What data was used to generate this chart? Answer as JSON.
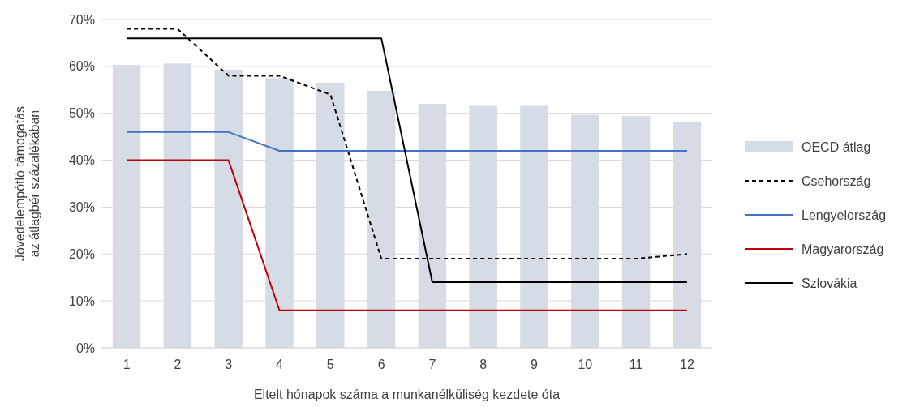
{
  "chart_data": {
    "type": "bar",
    "xlabel": "Eltelt hónapok száma a munkanélküliség kezdete óta",
    "ylabel": "Jövedelempótló támogatás\naz átlagbér százalékában",
    "categories": [
      "1",
      "2",
      "3",
      "4",
      "5",
      "6",
      "7",
      "8",
      "9",
      "10",
      "11",
      "12"
    ],
    "series": [
      {
        "name": "OECD átlag",
        "color": "#d6dce5",
        "values": [
          60.3,
          60.6,
          59.3,
          57.5,
          56.5,
          54.8,
          52,
          51.6,
          51.6,
          49.7,
          49.4,
          48.1
        ]
      },
      {
        "name": "Csehország",
        "type": "line",
        "line_style": "dashed",
        "color": "#000000",
        "values": [
          68,
          68,
          58,
          58,
          54,
          19,
          19,
          19,
          19,
          19,
          19,
          20
        ]
      },
      {
        "name": "Lengyelország",
        "type": "line",
        "line_style": "solid",
        "color": "#4472c4",
        "values": [
          46,
          46,
          46,
          42,
          42,
          42,
          42,
          42,
          42,
          42,
          42,
          42
        ]
      },
      {
        "name": "Magyarország",
        "type": "line",
        "line_style": "solid",
        "color": "#c00000",
        "values": [
          40,
          40,
          40,
          8,
          8,
          8,
          8,
          8,
          8,
          8,
          8,
          8
        ]
      },
      {
        "name": "Szlovákia",
        "type": "line",
        "line_style": "solid",
        "color": "#000000",
        "values": [
          66,
          66,
          66,
          66,
          66,
          66,
          14,
          14,
          14,
          14,
          14,
          14
        ]
      }
    ],
    "ylim": [
      0,
      70
    ],
    "yticks": [
      {
        "value": 0,
        "label": "0%"
      },
      {
        "value": 10,
        "label": "10%"
      },
      {
        "value": 20,
        "label": "20%"
      },
      {
        "value": 30,
        "label": "30%"
      },
      {
        "value": 40,
        "label": "40%"
      },
      {
        "value": 50,
        "label": "50%"
      },
      {
        "value": 60,
        "label": "60%"
      },
      {
        "value": 70,
        "label": "70%"
      }
    ],
    "grid": "y",
    "legend": "right"
  }
}
